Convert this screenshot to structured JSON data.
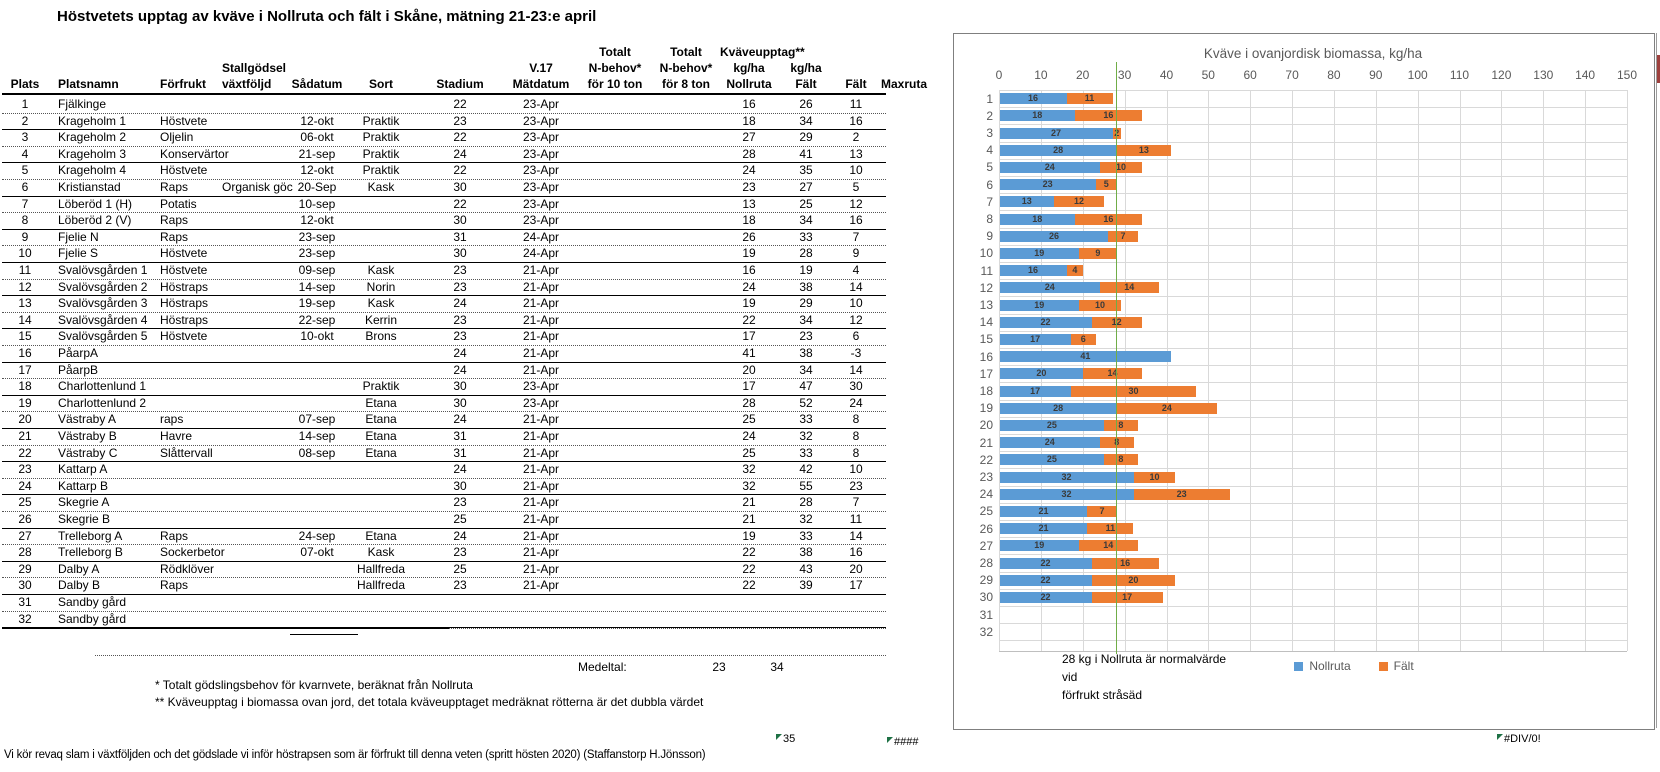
{
  "title": "Höstvetets upptag av kväve i Nollruta och fält i Skåne, mätning 21-23:e april",
  "table": {
    "headers": {
      "plats": "Plats",
      "platsnamn": "Platsnamn",
      "forfrukt": "Förfrukt",
      "stallgodsel1": "Stallgödsel",
      "stallgodsel2": "växtföljd",
      "sadatum": "Sådatum",
      "sort": "Sort",
      "stadium": "Stadium",
      "v17": "V.17",
      "matdatum": "Mätdatum",
      "totalt1": "Totalt",
      "nbehov1": "N-behov*",
      "for10": "för 10 ton",
      "totalt2": "Totalt",
      "nbehov2": "N-behov*",
      "for8": "för 8 ton",
      "kvaveupptag": "Kväveupptag**",
      "kgha1": "kg/ha",
      "kgha2": "kg/ha",
      "nollruta": "Nollruta",
      "falt1": "Fält",
      "falt2": "Fält",
      "maxruta": "Maxruta"
    },
    "rows": [
      [
        "1",
        "Fjälkinge",
        "",
        "",
        "",
        "",
        "22",
        "23-Apr",
        "",
        "",
        "16",
        "26",
        "11",
        ""
      ],
      [
        "2",
        "Krageholm 1",
        "Höstvete",
        "",
        "12-okt",
        "Praktik",
        "23",
        "23-Apr",
        "",
        "",
        "18",
        "34",
        "16",
        ""
      ],
      [
        "3",
        "Krageholm 2",
        "Oljelin",
        "",
        "06-okt",
        "Praktik",
        "22",
        "23-Apr",
        "",
        "",
        "27",
        "29",
        "2",
        ""
      ],
      [
        "4",
        "Krageholm 3",
        "Konservärtor",
        "",
        "21-sep",
        "Praktik",
        "24",
        "23-Apr",
        "",
        "",
        "28",
        "41",
        "13",
        ""
      ],
      [
        "5",
        "Krageholm 4",
        "Höstvete",
        "",
        "12-okt",
        "Praktik",
        "22",
        "23-Apr",
        "",
        "",
        "24",
        "35",
        "10",
        ""
      ],
      [
        "6",
        "Kristianstad",
        "Raps",
        "Organisk göc",
        "20-Sep",
        "Kask",
        "30",
        "23-Apr",
        "",
        "",
        "23",
        "27",
        "5",
        ""
      ],
      [
        "7",
        "Löberöd 1 (H)",
        "Potatis",
        "",
        "10-sep",
        "",
        "22",
        "23-Apr",
        "",
        "",
        "13",
        "25",
        "12",
        ""
      ],
      [
        "8",
        "Löberöd 2 (V)",
        "Raps",
        "",
        "12-okt",
        "",
        "30",
        "23-Apr",
        "",
        "",
        "18",
        "34",
        "16",
        ""
      ],
      [
        "9",
        "Fjelie N",
        "Raps",
        "",
        "23-sep",
        "",
        "31",
        "24-Apr",
        "",
        "",
        "26",
        "33",
        "7",
        ""
      ],
      [
        "10",
        "Fjelie S",
        "Höstvete",
        "",
        "23-sep",
        "",
        "30",
        "24-Apr",
        "",
        "",
        "19",
        "28",
        "9",
        ""
      ],
      [
        "11",
        "Svalövsgården 1",
        "Höstvete",
        "",
        "09-sep",
        "Kask",
        "23",
        "21-Apr",
        "",
        "",
        "16",
        "19",
        "4",
        ""
      ],
      [
        "12",
        "Svalövsgården 2",
        "Höstraps",
        "",
        "14-sep",
        "Norin",
        "23",
        "21-Apr",
        "",
        "",
        "24",
        "38",
        "14",
        ""
      ],
      [
        "13",
        "Svalövsgården 3",
        "Höstraps",
        "",
        "19-sep",
        "Kask",
        "24",
        "21-Apr",
        "",
        "",
        "19",
        "29",
        "10",
        ""
      ],
      [
        "14",
        "Svalövsgården 4",
        "Höstraps",
        "",
        "22-sep",
        "Kerrin",
        "23",
        "21-Apr",
        "",
        "",
        "22",
        "34",
        "12",
        ""
      ],
      [
        "15",
        "Svalövsgården 5",
        "Höstvete",
        "",
        "10-okt",
        "Brons",
        "23",
        "21-Apr",
        "",
        "",
        "17",
        "23",
        "6",
        ""
      ],
      [
        "16",
        "PåarpA",
        "",
        "",
        "",
        "",
        "24",
        "21-Apr",
        "",
        "",
        "41",
        "38",
        "-3",
        ""
      ],
      [
        "17",
        "PåarpB",
        "",
        "",
        "",
        "",
        "24",
        "21-Apr",
        "",
        "",
        "20",
        "34",
        "14",
        ""
      ],
      [
        "18",
        "Charlottenlund 1",
        "",
        "",
        "",
        "Praktik",
        "30",
        "23-Apr",
        "",
        "",
        "17",
        "47",
        "30",
        ""
      ],
      [
        "19",
        "Charlottenlund 2",
        "",
        "",
        "",
        "Etana",
        "30",
        "23-Apr",
        "",
        "",
        "28",
        "52",
        "24",
        ""
      ],
      [
        "20",
        "Västraby A",
        "raps",
        "",
        "07-sep",
        "Etana",
        "24",
        "21-Apr",
        "",
        "",
        "25",
        "33",
        "8",
        ""
      ],
      [
        "21",
        "Västraby B",
        "Havre",
        "",
        "14-sep",
        "Etana",
        "31",
        "21-Apr",
        "",
        "",
        "24",
        "32",
        "8",
        ""
      ],
      [
        "22",
        "Västraby C",
        "Slåttervall",
        "",
        "08-sep",
        "Etana",
        "31",
        "21-Apr",
        "",
        "",
        "25",
        "33",
        "8",
        ""
      ],
      [
        "23",
        "Kattarp A",
        "",
        "",
        "",
        "",
        "24",
        "21-Apr",
        "",
        "",
        "32",
        "42",
        "10",
        ""
      ],
      [
        "24",
        "Kattarp B",
        "",
        "",
        "",
        "",
        "30",
        "21-Apr",
        "",
        "",
        "32",
        "55",
        "23",
        ""
      ],
      [
        "25",
        "Skegrie A",
        "",
        "",
        "",
        "",
        "23",
        "21-Apr",
        "",
        "",
        "21",
        "28",
        "7",
        ""
      ],
      [
        "26",
        "Skegrie B",
        "",
        "",
        "",
        "",
        "25",
        "21-Apr",
        "",
        "",
        "21",
        "32",
        "11",
        ""
      ],
      [
        "27",
        "Trelleborg A",
        "Raps",
        "",
        "24-sep",
        "Etana",
        "24",
        "21-Apr",
        "",
        "",
        "19",
        "33",
        "14",
        ""
      ],
      [
        "28",
        "Trelleborg B",
        "Sockerbetor",
        "",
        "07-okt",
        "Kask",
        "23",
        "21-Apr",
        "",
        "",
        "22",
        "38",
        "16",
        ""
      ],
      [
        "29",
        "Dalby A",
        "Rödklöver",
        "",
        "",
        "Hallfreda",
        "25",
        "21-Apr",
        "",
        "",
        "22",
        "43",
        "20",
        ""
      ],
      [
        "30",
        "Dalby B",
        "Raps",
        "",
        "",
        "Hallfreda",
        "23",
        "21-Apr",
        "",
        "",
        "22",
        "39",
        "17",
        ""
      ],
      [
        "31",
        "Sandby gård",
        "",
        "",
        "",
        "",
        "",
        "",
        "",
        "",
        "",
        "",
        "",
        ""
      ],
      [
        "32",
        "Sandby gård",
        "",
        "",
        "",
        "",
        "",
        "",
        "",
        "",
        "",
        "",
        "",
        ""
      ]
    ],
    "medeltal": {
      "label": "Medeltal:",
      "nollruta": "23",
      "falt": "34"
    },
    "footnote1": "* Totalt gödslingsbehov för kvarnvete, beräknat från Nollruta",
    "footnote2": "** Kväveupptag i biomassa ovan jord, det totala kväveupptaget medräknat rötterna är det dubbla värdet"
  },
  "cells": {
    "c35": "35",
    "hashes": "####",
    "div0": "#DIV/0!"
  },
  "bottom_note": "Vi kör revaq slam i växtföljden och det gödslade vi inför höstrapsen som är förfrukt till denna veten (spritt hösten 2020) (Staffanstorp H.Jönsson)",
  "chart_data": {
    "type": "bar",
    "orientation": "horizontal",
    "stacked": true,
    "title": "Kväve i ovanjordisk biomassa, kg/ha",
    "categories": [
      1,
      2,
      3,
      4,
      5,
      6,
      7,
      8,
      9,
      10,
      11,
      12,
      13,
      14,
      15,
      16,
      17,
      18,
      19,
      20,
      21,
      22,
      23,
      24,
      25,
      26,
      27,
      28,
      29,
      30,
      31,
      32
    ],
    "series": [
      {
        "name": "Nollruta",
        "color": "#5B9BD5",
        "values": [
          16,
          18,
          27,
          28,
          24,
          23,
          13,
          18,
          26,
          19,
          16,
          24,
          19,
          22,
          17,
          41,
          20,
          17,
          28,
          25,
          24,
          25,
          32,
          32,
          21,
          21,
          19,
          22,
          22,
          22,
          null,
          null
        ]
      },
      {
        "name": "Fält",
        "color": "#ED7D31",
        "values": [
          11,
          16,
          2,
          13,
          10,
          5,
          12,
          16,
          7,
          9,
          4,
          14,
          10,
          12,
          6,
          null,
          14,
          30,
          24,
          8,
          8,
          8,
          10,
          23,
          7,
          11,
          14,
          16,
          20,
          17,
          null,
          null
        ]
      }
    ],
    "xlim": [
      0,
      150
    ],
    "xticks": [
      0,
      10,
      20,
      30,
      40,
      50,
      60,
      70,
      80,
      90,
      100,
      110,
      120,
      130,
      140,
      150
    ],
    "grid": true,
    "legend_position": "bottom",
    "reference_line": {
      "value": 28,
      "color": "#70AD47"
    },
    "annotation_lines": [
      "28 kg i Nollruta är normalvärde",
      "vid",
      "förfrukt stråsäd"
    ]
  }
}
